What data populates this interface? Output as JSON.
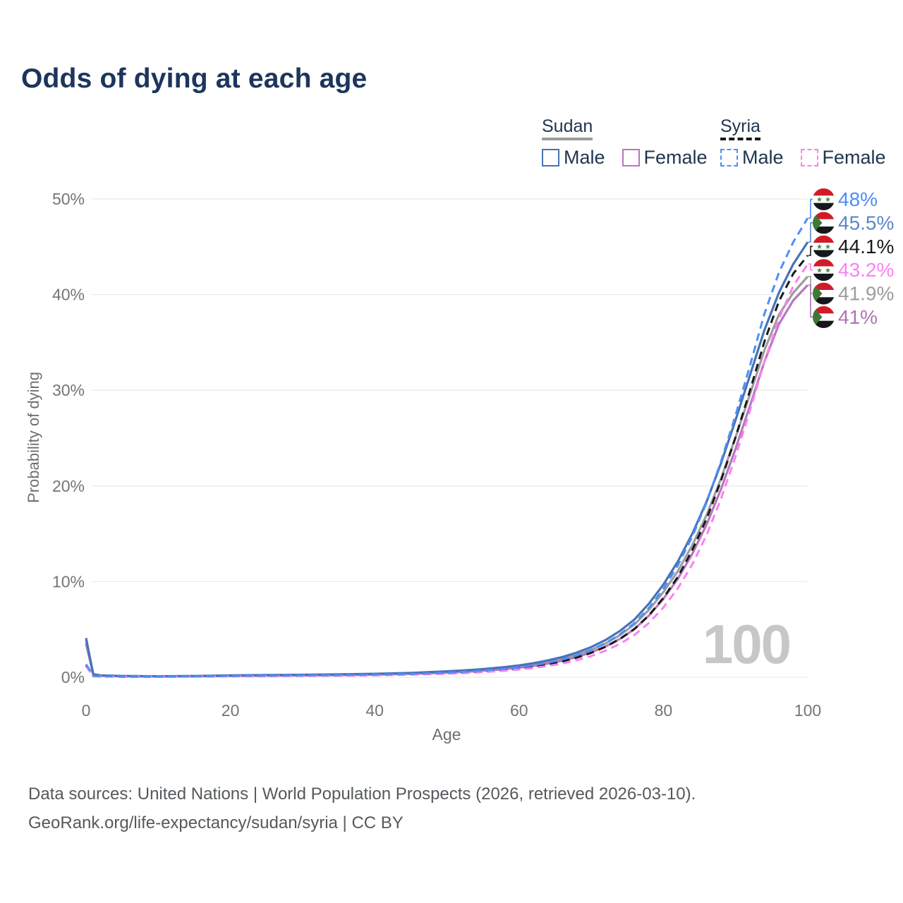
{
  "title": "Odds of dying at each age",
  "watermark_age": "100",
  "footer": {
    "line1": "Data sources: United Nations | World Population Prospects (2026, retrieved 2026-03-10).",
    "line2": "GeoRank.org/life-expectancy/sudan/syria | CC BY"
  },
  "legend": {
    "groups": [
      {
        "country": "Sudan",
        "line_style": "solid",
        "underline_color": "#9d9d9d",
        "items": [
          {
            "label": "Male",
            "color": "#4673b8",
            "dash": false
          },
          {
            "label": "Female",
            "color": "#b577bd",
            "dash": false
          }
        ]
      },
      {
        "country": "Syria",
        "line_style": "dashed",
        "underline_color": "#1a1a1a",
        "items": [
          {
            "label": "Male",
            "color": "#4d8ef7",
            "dash": true
          },
          {
            "label": "Female",
            "color": "#fb80f2",
            "dash": true
          }
        ]
      }
    ]
  },
  "chart_data": {
    "type": "line",
    "title": "Odds of dying at each age",
    "xlabel": "Age",
    "ylabel": "Probability of dying",
    "xlim": [
      0,
      100
    ],
    "ylim": [
      0,
      50
    ],
    "x_ticks": [
      0,
      20,
      40,
      60,
      80,
      100
    ],
    "y_ticks": [
      0,
      10,
      20,
      30,
      40,
      50
    ],
    "y_tick_suffix": "%",
    "grid": true,
    "legend_position": "top-right",
    "ages": [
      0,
      1,
      2,
      5,
      10,
      15,
      20,
      25,
      30,
      35,
      40,
      45,
      50,
      52,
      54,
      56,
      58,
      60,
      62,
      64,
      66,
      68,
      70,
      72,
      74,
      76,
      78,
      80,
      82,
      84,
      86,
      88,
      90,
      92,
      94,
      96,
      98,
      100
    ],
    "unit": "percent",
    "series": [
      {
        "name": "Sudan Both sexes",
        "country": "Sudan",
        "color": "#9d9d9d",
        "dash": false,
        "values": [
          3.85,
          0.3,
          0.18,
          0.12,
          0.09,
          0.11,
          0.16,
          0.19,
          0.22,
          0.26,
          0.32,
          0.41,
          0.55,
          0.62,
          0.71,
          0.82,
          0.95,
          1.11,
          1.32,
          1.58,
          1.91,
          2.33,
          2.86,
          3.54,
          4.42,
          5.53,
          7.05,
          8.9,
          11.1,
          13.8,
          17.0,
          20.8,
          25.1,
          29.6,
          34.2,
          37.9,
          40.2,
          41.9
        ]
      },
      {
        "name": "Sudan Female",
        "country": "Sudan",
        "color": "#b577bd",
        "dash": false,
        "values": [
          3.5,
          0.28,
          0.17,
          0.11,
          0.08,
          0.1,
          0.13,
          0.16,
          0.19,
          0.22,
          0.27,
          0.36,
          0.48,
          0.55,
          0.63,
          0.73,
          0.85,
          1.0,
          1.19,
          1.43,
          1.73,
          2.11,
          2.6,
          3.22,
          4.02,
          5.05,
          6.45,
          8.2,
          10.3,
          12.9,
          16.0,
          19.7,
          23.9,
          28.4,
          33.0,
          36.9,
          39.4,
          41.0
        ]
      },
      {
        "name": "Sudan Male",
        "country": "Sudan",
        "color": "#4673b8",
        "dash": false,
        "values": [
          4.1,
          0.32,
          0.2,
          0.13,
          0.1,
          0.13,
          0.19,
          0.23,
          0.26,
          0.3,
          0.36,
          0.46,
          0.62,
          0.7,
          0.8,
          0.92,
          1.06,
          1.24,
          1.47,
          1.76,
          2.12,
          2.58,
          3.16,
          3.9,
          4.85,
          6.05,
          7.7,
          9.7,
          12.1,
          15.0,
          18.4,
          22.4,
          26.9,
          31.6,
          36.3,
          40.2,
          43.2,
          45.5
        ]
      },
      {
        "name": "Syria Both sexes",
        "country": "Syria",
        "color": "#1a1a1a",
        "dash": true,
        "values": [
          1.25,
          0.14,
          0.09,
          0.06,
          0.06,
          0.08,
          0.12,
          0.14,
          0.16,
          0.19,
          0.24,
          0.31,
          0.43,
          0.49,
          0.57,
          0.67,
          0.79,
          0.93,
          1.12,
          1.36,
          1.66,
          2.05,
          2.55,
          3.19,
          4.01,
          5.06,
          6.48,
          8.3,
          10.5,
          13.3,
          16.6,
          20.6,
          25.1,
          30.0,
          35.1,
          39.3,
          42.2,
          44.1
        ]
      },
      {
        "name": "Syria Female",
        "country": "Syria",
        "color": "#fb80f2",
        "dash": true,
        "values": [
          1.15,
          0.13,
          0.08,
          0.05,
          0.05,
          0.07,
          0.1,
          0.12,
          0.14,
          0.16,
          0.2,
          0.27,
          0.37,
          0.42,
          0.49,
          0.58,
          0.68,
          0.81,
          0.97,
          1.18,
          1.44,
          1.78,
          2.22,
          2.78,
          3.5,
          4.43,
          5.68,
          7.3,
          9.3,
          11.8,
          14.9,
          18.7,
          23.1,
          27.9,
          33.0,
          37.5,
          40.9,
          43.2
        ]
      },
      {
        "name": "Syria Male",
        "country": "Syria",
        "color": "#4d8ef7",
        "dash": true,
        "values": [
          1.35,
          0.15,
          0.1,
          0.07,
          0.06,
          0.09,
          0.14,
          0.17,
          0.19,
          0.22,
          0.27,
          0.35,
          0.48,
          0.55,
          0.64,
          0.75,
          0.88,
          1.04,
          1.25,
          1.52,
          1.86,
          2.3,
          2.86,
          3.58,
          4.5,
          5.68,
          7.25,
          9.25,
          11.7,
          14.7,
          18.3,
          22.6,
          27.4,
          32.6,
          38.0,
          42.3,
          45.5,
          48.0
        ]
      }
    ],
    "end_labels": [
      {
        "text": "48%",
        "value": 48.0,
        "series": "Syria Male",
        "flag": "syria",
        "color": "#4d8ef7"
      },
      {
        "text": "45.5%",
        "value": 45.5,
        "series": "Sudan Male",
        "flag": "sudan",
        "color": "#5d87c8"
      },
      {
        "text": "44.1%",
        "value": 44.1,
        "series": "Syria Both sexes",
        "flag": "syria",
        "color": "#1a1a1a"
      },
      {
        "text": "43.2%",
        "value": 43.2,
        "series": "Syria Female",
        "flag": "syria",
        "color": "#fb80f2"
      },
      {
        "text": "41.9%",
        "value": 41.9,
        "series": "Sudan Both sexes",
        "flag": "sudan",
        "color": "#9d9d9d"
      },
      {
        "text": "41%",
        "value": 41.0,
        "series": "Sudan Female",
        "flag": "sudan",
        "color": "#ad74b5"
      }
    ],
    "flag_colors": {
      "red": "#d11c28",
      "white": "#ffffff",
      "black": "#14181b",
      "syria_star_green": "#3f8f46",
      "sudan_triangle_green": "#3c7a35"
    }
  }
}
